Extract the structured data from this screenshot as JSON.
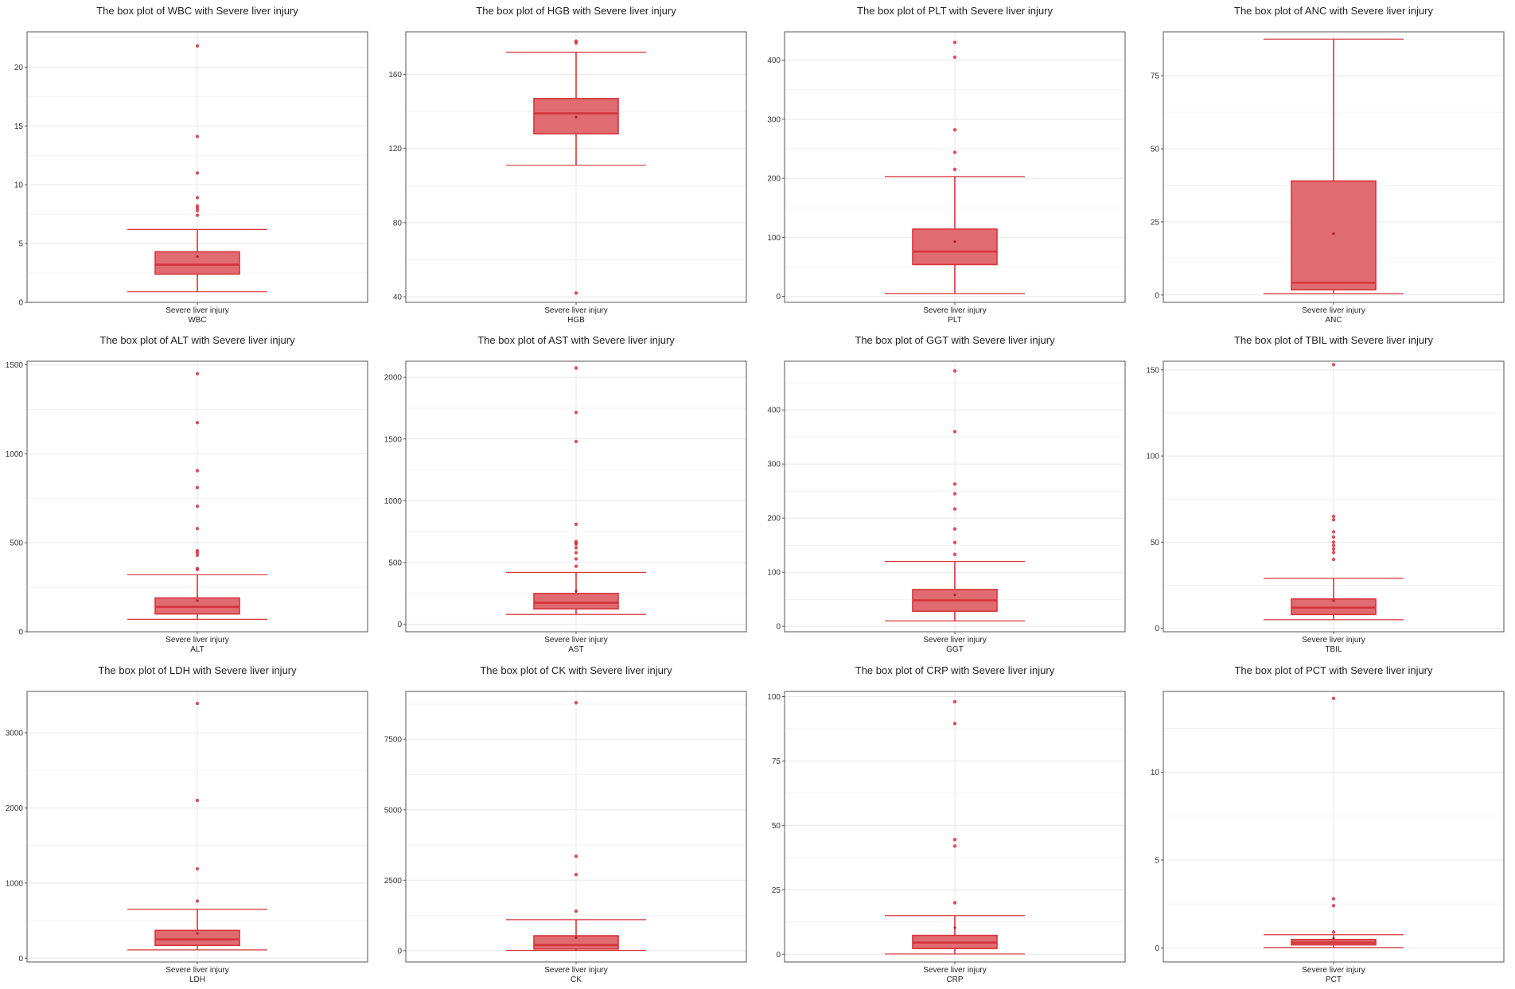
{
  "colors": {
    "accent": "#d6343c",
    "fill": "#e06b70",
    "grid": "#e8e8e8",
    "frame": "#555555"
  },
  "chart_data": [
    {
      "type": "box",
      "title": "The box plot of WBC with Severe liver injury",
      "category": "Severe liver injury",
      "xlabel": "WBC",
      "ylim": [
        0,
        23
      ],
      "yticks": [
        0,
        5,
        10,
        15,
        20
      ],
      "yticklabels": [
        "0",
        "5",
        "10",
        "15",
        "20"
      ],
      "box": {
        "min": 0.9,
        "q1": 2.4,
        "median": 3.2,
        "q3": 4.3,
        "max": 6.2,
        "mean": 3.9
      },
      "outliers": [
        7.4,
        7.8,
        8.0,
        8.2,
        8.9,
        11.0,
        14.1,
        21.8
      ]
    },
    {
      "type": "box",
      "title": "The box plot of HGB with Severe liver injury",
      "category": "Severe liver injury",
      "xlabel": "HGB",
      "ylim": [
        37,
        183
      ],
      "yticks": [
        40,
        80,
        120,
        160
      ],
      "yticklabels": [
        "40",
        "80",
        "120",
        "160"
      ],
      "box": {
        "min": 111,
        "q1": 128,
        "median": 139,
        "q3": 147,
        "max": 172,
        "mean": 137
      },
      "outliers": [
        42,
        177,
        178
      ]
    },
    {
      "type": "box",
      "title": "The box plot of PLT with Severe liver injury",
      "category": "Severe liver injury",
      "xlabel": "PLT",
      "ylim": [
        -10,
        448
      ],
      "yticks": [
        0,
        100,
        200,
        300,
        400
      ],
      "yticklabels": [
        "0",
        "100",
        "200",
        "300",
        "400"
      ],
      "box": {
        "min": 5,
        "q1": 54,
        "median": 76,
        "q3": 114,
        "max": 203,
        "mean": 93
      },
      "outliers": [
        215,
        244,
        282,
        405,
        430
      ]
    },
    {
      "type": "box",
      "title": "The box plot of ANC with Severe liver injury",
      "category": "Severe liver injury",
      "xlabel": "ANC",
      "ylim": [
        -2.5,
        90
      ],
      "yticks": [
        0,
        25,
        50,
        75
      ],
      "yticklabels": [
        "0",
        "25",
        "50",
        "75"
      ],
      "box": {
        "min": 0.5,
        "q1": 1.8,
        "median": 4.2,
        "q3": 39,
        "max": 87.5,
        "mean": 21
      },
      "outliers": []
    },
    {
      "type": "box",
      "title": "The box plot of ALT with Severe liver injury",
      "category": "Severe liver injury",
      "xlabel": "ALT",
      "ylim": [
        0,
        1520
      ],
      "yticks": [
        0,
        500,
        1000,
        1500
      ],
      "yticklabels": [
        "0",
        "500",
        "1000",
        "1500"
      ],
      "box": {
        "min": 70,
        "q1": 100,
        "median": 140,
        "q3": 190,
        "max": 320,
        "mean": 175
      },
      "outliers": [
        350,
        355,
        430,
        445,
        455,
        580,
        705,
        810,
        905,
        1175,
        1450
      ]
    },
    {
      "type": "box",
      "title": "The box plot of AST with Severe liver injury",
      "category": "Severe liver injury",
      "xlabel": "AST",
      "ylim": [
        -60,
        2130
      ],
      "yticks": [
        0,
        500,
        1000,
        1500,
        2000
      ],
      "yticklabels": [
        "0",
        "500",
        "1000",
        "1500",
        "2000"
      ],
      "box": {
        "min": 80,
        "q1": 125,
        "median": 175,
        "q3": 250,
        "max": 420,
        "mean": 270
      },
      "outliers": [
        470,
        530,
        580,
        620,
        650,
        660,
        670,
        810,
        1480,
        1715,
        2075
      ]
    },
    {
      "type": "box",
      "title": "The box plot of GGT with Severe liver injury",
      "category": "Severe liver injury",
      "xlabel": "GGT",
      "ylim": [
        -10,
        490
      ],
      "yticks": [
        0,
        100,
        200,
        300,
        400
      ],
      "yticklabels": [
        "0",
        "100",
        "200",
        "300",
        "400"
      ],
      "box": {
        "min": 10,
        "q1": 28,
        "median": 48,
        "q3": 68,
        "max": 120,
        "mean": 58
      },
      "outliers": [
        133,
        155,
        180,
        217,
        245,
        263,
        360,
        472
      ]
    },
    {
      "type": "box",
      "title": "The box plot of TBIL with Severe liver injury",
      "category": "Severe liver injury",
      "xlabel": "TBIL",
      "ylim": [
        -2,
        155
      ],
      "yticks": [
        0,
        50,
        100,
        150
      ],
      "yticklabels": [
        "0",
        "50",
        "100",
        "150"
      ],
      "box": {
        "min": 5,
        "q1": 8,
        "median": 12,
        "q3": 17,
        "max": 29,
        "mean": 16
      },
      "outliers": [
        40,
        44,
        46,
        48,
        50,
        53,
        56,
        63,
        65,
        153
      ]
    },
    {
      "type": "box",
      "title": "The box plot of LDH with Severe liver injury",
      "category": "Severe liver injury",
      "xlabel": "LDH",
      "ylim": [
        -50,
        3550
      ],
      "yticks": [
        0,
        1000,
        2000,
        3000
      ],
      "yticklabels": [
        "0",
        "1000",
        "2000",
        "3000"
      ],
      "box": {
        "min": 110,
        "q1": 170,
        "median": 250,
        "q3": 370,
        "max": 650,
        "mean": 330
      },
      "outliers": [
        760,
        1190,
        2100,
        3390
      ]
    },
    {
      "type": "box",
      "title": "The box plot of CK with Severe liver injury",
      "category": "Severe liver injury",
      "xlabel": "CK",
      "ylim": [
        -400,
        9200
      ],
      "yticks": [
        0,
        2500,
        5000,
        7500
      ],
      "yticklabels": [
        "0",
        "2500",
        "5000",
        "7500"
      ],
      "box": {
        "min": 10,
        "q1": 60,
        "median": 200,
        "q3": 530,
        "max": 1100,
        "mean": 470
      },
      "outliers": [
        1400,
        2700,
        3350,
        8800
      ]
    },
    {
      "type": "box",
      "title": "The box plot of CRP with Severe liver injury",
      "category": "Severe liver injury",
      "xlabel": "CRP",
      "ylim": [
        -3,
        102
      ],
      "yticks": [
        0,
        25,
        50,
        75,
        100
      ],
      "yticklabels": [
        "0",
        "25",
        "50",
        "75",
        "100"
      ],
      "box": {
        "min": 0.1,
        "q1": 2.2,
        "median": 4.5,
        "q3": 7.3,
        "max": 15,
        "mean": 10.3
      },
      "outliers": [
        20,
        42,
        44.5,
        89.5,
        98
      ]
    },
    {
      "type": "box",
      "title": "The box plot of PCT with Severe liver injury",
      "category": "Severe liver injury",
      "xlabel": "PCT",
      "ylim": [
        -0.8,
        14.6
      ],
      "yticks": [
        0,
        5,
        10
      ],
      "yticklabels": [
        "0",
        "5",
        "10"
      ],
      "box": {
        "min": 0.02,
        "q1": 0.17,
        "median": 0.3,
        "q3": 0.48,
        "max": 0.75,
        "mean": 0.55
      },
      "outliers": [
        0.9,
        2.4,
        2.8,
        14.2
      ]
    }
  ]
}
